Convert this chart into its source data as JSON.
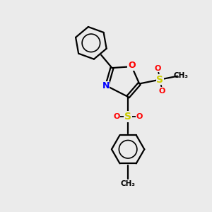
{
  "bg_color": "#ebebeb",
  "bond_color": "#000000",
  "oxygen_color": "#ff0000",
  "nitrogen_color": "#0000ff",
  "sulfur_color": "#cccc00",
  "figsize": [
    3.0,
    3.0
  ],
  "dpi": 100,
  "xlim": [
    0,
    10
  ],
  "ylim": [
    0,
    10
  ]
}
